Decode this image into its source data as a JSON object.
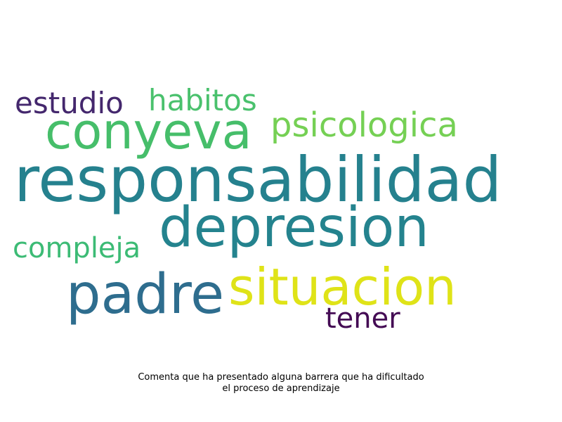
{
  "words": [
    {
      "text": "responsabilidad",
      "color": "#25818e"
    },
    {
      "text": "depresion",
      "color": "#24838e"
    },
    {
      "text": "padre",
      "color": "#2e6d8e"
    },
    {
      "text": "situacion",
      "color": "#dfe318"
    },
    {
      "text": "conyeva",
      "color": "#46be6a"
    },
    {
      "text": "psicologica",
      "color": "#75d054"
    },
    {
      "text": "habitos",
      "color": "#4ac16d"
    },
    {
      "text": "estudio",
      "color": "#44276d"
    },
    {
      "text": "compleja",
      "color": "#3cbb75"
    },
    {
      "text": "tener",
      "color": "#440b54"
    }
  ],
  "caption": {
    "line1": "Comenta que ha presentado alguna barrera que ha dificultado",
    "line2": "el proceso de aprendizaje"
  }
}
